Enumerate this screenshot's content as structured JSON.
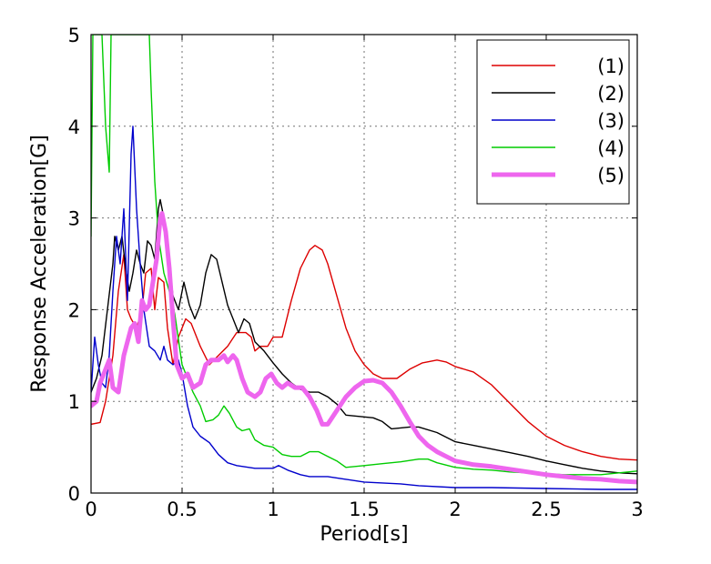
{
  "chart_data": {
    "type": "line",
    "title": "",
    "xlabel": "Period[s]",
    "ylabel": "Response Acceleration[G]",
    "xlim": [
      0,
      3
    ],
    "ylim": [
      0,
      5
    ],
    "xticks": [
      0,
      0.5,
      1,
      1.5,
      2,
      2.5,
      3
    ],
    "xtick_labels": [
      "0",
      "0.5",
      "1",
      "1.5",
      "2",
      "2.5",
      "3"
    ],
    "yticks": [
      0,
      1,
      2,
      3,
      4,
      5
    ],
    "ytick_labels": [
      "0",
      "1",
      "2",
      "3",
      "4",
      "5"
    ],
    "grid": true,
    "legend_position": "top-right",
    "series": [
      {
        "name": "(1)",
        "color": "#dd0000",
        "emphasis": "normal",
        "points": [
          [
            0,
            0.75
          ],
          [
            0.05,
            0.77
          ],
          [
            0.08,
            1.0
          ],
          [
            0.12,
            1.5
          ],
          [
            0.15,
            2.2
          ],
          [
            0.18,
            2.6
          ],
          [
            0.2,
            2.0
          ],
          [
            0.22,
            1.9
          ],
          [
            0.25,
            1.8
          ],
          [
            0.28,
            2.0
          ],
          [
            0.3,
            2.4
          ],
          [
            0.33,
            2.45
          ],
          [
            0.35,
            2.0
          ],
          [
            0.37,
            2.35
          ],
          [
            0.4,
            2.3
          ],
          [
            0.42,
            1.8
          ],
          [
            0.45,
            1.4
          ],
          [
            0.48,
            1.7
          ],
          [
            0.52,
            1.9
          ],
          [
            0.55,
            1.85
          ],
          [
            0.6,
            1.6
          ],
          [
            0.65,
            1.4
          ],
          [
            0.7,
            1.5
          ],
          [
            0.75,
            1.6
          ],
          [
            0.8,
            1.75
          ],
          [
            0.85,
            1.75
          ],
          [
            0.88,
            1.7
          ],
          [
            0.9,
            1.55
          ],
          [
            0.93,
            1.6
          ],
          [
            0.97,
            1.6
          ],
          [
            1.0,
            1.7
          ],
          [
            1.05,
            1.7
          ],
          [
            1.1,
            2.1
          ],
          [
            1.15,
            2.45
          ],
          [
            1.2,
            2.65
          ],
          [
            1.23,
            2.7
          ],
          [
            1.27,
            2.65
          ],
          [
            1.3,
            2.5
          ],
          [
            1.35,
            2.15
          ],
          [
            1.4,
            1.8
          ],
          [
            1.45,
            1.55
          ],
          [
            1.5,
            1.4
          ],
          [
            1.55,
            1.3
          ],
          [
            1.6,
            1.25
          ],
          [
            1.68,
            1.25
          ],
          [
            1.75,
            1.35
          ],
          [
            1.82,
            1.42
          ],
          [
            1.9,
            1.45
          ],
          [
            1.95,
            1.43
          ],
          [
            2.0,
            1.38
          ],
          [
            2.1,
            1.32
          ],
          [
            2.2,
            1.18
          ],
          [
            2.3,
            0.98
          ],
          [
            2.4,
            0.78
          ],
          [
            2.5,
            0.62
          ],
          [
            2.6,
            0.52
          ],
          [
            2.7,
            0.45
          ],
          [
            2.8,
            0.4
          ],
          [
            2.9,
            0.37
          ],
          [
            3.0,
            0.36
          ]
        ]
      },
      {
        "name": "(2)",
        "color": "#000000",
        "emphasis": "normal",
        "points": [
          [
            0,
            1.1
          ],
          [
            0.03,
            1.25
          ],
          [
            0.06,
            1.5
          ],
          [
            0.09,
            2.0
          ],
          [
            0.12,
            2.5
          ],
          [
            0.13,
            2.8
          ],
          [
            0.15,
            2.65
          ],
          [
            0.17,
            2.8
          ],
          [
            0.19,
            2.45
          ],
          [
            0.21,
            2.2
          ],
          [
            0.23,
            2.4
          ],
          [
            0.25,
            2.65
          ],
          [
            0.27,
            2.5
          ],
          [
            0.29,
            2.4
          ],
          [
            0.31,
            2.75
          ],
          [
            0.33,
            2.7
          ],
          [
            0.35,
            2.55
          ],
          [
            0.37,
            3.1
          ],
          [
            0.38,
            3.2
          ],
          [
            0.4,
            3.0
          ],
          [
            0.42,
            2.7
          ],
          [
            0.45,
            2.15
          ],
          [
            0.48,
            2.0
          ],
          [
            0.51,
            2.3
          ],
          [
            0.54,
            2.05
          ],
          [
            0.57,
            1.9
          ],
          [
            0.6,
            2.05
          ],
          [
            0.63,
            2.4
          ],
          [
            0.66,
            2.6
          ],
          [
            0.69,
            2.55
          ],
          [
            0.72,
            2.3
          ],
          [
            0.75,
            2.05
          ],
          [
            0.78,
            1.9
          ],
          [
            0.81,
            1.75
          ],
          [
            0.84,
            1.9
          ],
          [
            0.87,
            1.85
          ],
          [
            0.9,
            1.65
          ],
          [
            0.95,
            1.55
          ],
          [
            1.0,
            1.42
          ],
          [
            1.05,
            1.3
          ],
          [
            1.1,
            1.2
          ],
          [
            1.15,
            1.13
          ],
          [
            1.2,
            1.1
          ],
          [
            1.25,
            1.1
          ],
          [
            1.3,
            1.05
          ],
          [
            1.35,
            0.97
          ],
          [
            1.4,
            0.85
          ],
          [
            1.5,
            0.83
          ],
          [
            1.55,
            0.82
          ],
          [
            1.6,
            0.78
          ],
          [
            1.65,
            0.7
          ],
          [
            1.7,
            0.71
          ],
          [
            1.75,
            0.72
          ],
          [
            1.8,
            0.72
          ],
          [
            1.9,
            0.66
          ],
          [
            2.0,
            0.56
          ],
          [
            2.1,
            0.52
          ],
          [
            2.2,
            0.48
          ],
          [
            2.3,
            0.44
          ],
          [
            2.4,
            0.4
          ],
          [
            2.5,
            0.35
          ],
          [
            2.6,
            0.31
          ],
          [
            2.7,
            0.27
          ],
          [
            2.8,
            0.24
          ],
          [
            2.9,
            0.22
          ],
          [
            3.0,
            0.21
          ]
        ]
      },
      {
        "name": "(3)",
        "color": "#0000cc",
        "emphasis": "normal",
        "points": [
          [
            0,
            1.1
          ],
          [
            0.02,
            1.7
          ],
          [
            0.04,
            1.4
          ],
          [
            0.06,
            1.2
          ],
          [
            0.08,
            1.15
          ],
          [
            0.1,
            1.5
          ],
          [
            0.12,
            2.2
          ],
          [
            0.14,
            2.8
          ],
          [
            0.16,
            2.5
          ],
          [
            0.18,
            3.1
          ],
          [
            0.2,
            2.1
          ],
          [
            0.22,
            3.7
          ],
          [
            0.23,
            4.0
          ],
          [
            0.25,
            3.1
          ],
          [
            0.27,
            2.5
          ],
          [
            0.29,
            2.0
          ],
          [
            0.32,
            1.6
          ],
          [
            0.35,
            1.55
          ],
          [
            0.38,
            1.45
          ],
          [
            0.4,
            1.6
          ],
          [
            0.42,
            1.45
          ],
          [
            0.45,
            1.4
          ],
          [
            0.48,
            1.45
          ],
          [
            0.5,
            1.3
          ],
          [
            0.53,
            0.95
          ],
          [
            0.56,
            0.72
          ],
          [
            0.6,
            0.62
          ],
          [
            0.65,
            0.55
          ],
          [
            0.7,
            0.42
          ],
          [
            0.75,
            0.33
          ],
          [
            0.8,
            0.3
          ],
          [
            0.9,
            0.27
          ],
          [
            1.0,
            0.27
          ],
          [
            1.03,
            0.3
          ],
          [
            1.08,
            0.25
          ],
          [
            1.15,
            0.2
          ],
          [
            1.2,
            0.18
          ],
          [
            1.3,
            0.18
          ],
          [
            1.4,
            0.15
          ],
          [
            1.5,
            0.12
          ],
          [
            1.6,
            0.11
          ],
          [
            1.7,
            0.1
          ],
          [
            1.8,
            0.08
          ],
          [
            2.0,
            0.06
          ],
          [
            2.2,
            0.06
          ],
          [
            2.5,
            0.05
          ],
          [
            2.8,
            0.04
          ],
          [
            3.0,
            0.04
          ]
        ]
      },
      {
        "name": "(4)",
        "color": "#00cc00",
        "emphasis": "normal",
        "points": [
          [
            0,
            2.8
          ],
          [
            0.01,
            5.0
          ],
          [
            0.02,
            5.0
          ],
          [
            0.03,
            5.0
          ],
          [
            0.045,
            5.0
          ],
          [
            0.06,
            5.0
          ],
          [
            0.08,
            4.0
          ],
          [
            0.1,
            3.5
          ],
          [
            0.11,
            5.0
          ],
          [
            0.12,
            5.0
          ],
          [
            0.13,
            5.0
          ],
          [
            0.2,
            5.0
          ],
          [
            0.32,
            5.0
          ],
          [
            0.33,
            4.4
          ],
          [
            0.35,
            3.4
          ],
          [
            0.37,
            2.8
          ],
          [
            0.4,
            2.4
          ],
          [
            0.43,
            2.2
          ],
          [
            0.46,
            1.95
          ],
          [
            0.5,
            1.4
          ],
          [
            0.53,
            1.25
          ],
          [
            0.56,
            1.1
          ],
          [
            0.6,
            0.95
          ],
          [
            0.63,
            0.78
          ],
          [
            0.67,
            0.8
          ],
          [
            0.7,
            0.85
          ],
          [
            0.73,
            0.95
          ],
          [
            0.76,
            0.87
          ],
          [
            0.8,
            0.72
          ],
          [
            0.83,
            0.68
          ],
          [
            0.87,
            0.7
          ],
          [
            0.9,
            0.58
          ],
          [
            0.95,
            0.52
          ],
          [
            1.0,
            0.5
          ],
          [
            1.05,
            0.42
          ],
          [
            1.1,
            0.4
          ],
          [
            1.15,
            0.4
          ],
          [
            1.2,
            0.45
          ],
          [
            1.25,
            0.45
          ],
          [
            1.3,
            0.4
          ],
          [
            1.35,
            0.35
          ],
          [
            1.4,
            0.28
          ],
          [
            1.5,
            0.3
          ],
          [
            1.6,
            0.32
          ],
          [
            1.7,
            0.34
          ],
          [
            1.8,
            0.37
          ],
          [
            1.85,
            0.37
          ],
          [
            1.9,
            0.33
          ],
          [
            2.0,
            0.28
          ],
          [
            2.1,
            0.26
          ],
          [
            2.2,
            0.25
          ],
          [
            2.3,
            0.23
          ],
          [
            2.4,
            0.22
          ],
          [
            2.5,
            0.21
          ],
          [
            2.6,
            0.2
          ],
          [
            2.7,
            0.2
          ],
          [
            2.8,
            0.2
          ],
          [
            2.9,
            0.22
          ],
          [
            3.0,
            0.24
          ]
        ]
      },
      {
        "name": "(5)",
        "color": "#ee66ee",
        "emphasis": "bold",
        "points": [
          [
            0,
            0.95
          ],
          [
            0.03,
            1.0
          ],
          [
            0.05,
            1.2
          ],
          [
            0.08,
            1.35
          ],
          [
            0.1,
            1.45
          ],
          [
            0.12,
            1.15
          ],
          [
            0.15,
            1.1
          ],
          [
            0.18,
            1.5
          ],
          [
            0.2,
            1.65
          ],
          [
            0.22,
            1.8
          ],
          [
            0.24,
            1.85
          ],
          [
            0.26,
            1.65
          ],
          [
            0.28,
            2.1
          ],
          [
            0.3,
            2.0
          ],
          [
            0.32,
            2.05
          ],
          [
            0.34,
            2.3
          ],
          [
            0.36,
            2.55
          ],
          [
            0.38,
            3.0
          ],
          [
            0.39,
            3.05
          ],
          [
            0.41,
            2.85
          ],
          [
            0.43,
            2.45
          ],
          [
            0.45,
            1.9
          ],
          [
            0.47,
            1.4
          ],
          [
            0.5,
            1.25
          ],
          [
            0.53,
            1.3
          ],
          [
            0.56,
            1.15
          ],
          [
            0.6,
            1.2
          ],
          [
            0.63,
            1.4
          ],
          [
            0.66,
            1.45
          ],
          [
            0.7,
            1.45
          ],
          [
            0.73,
            1.5
          ],
          [
            0.75,
            1.43
          ],
          [
            0.78,
            1.5
          ],
          [
            0.8,
            1.45
          ],
          [
            0.83,
            1.25
          ],
          [
            0.86,
            1.1
          ],
          [
            0.9,
            1.05
          ],
          [
            0.93,
            1.1
          ],
          [
            0.96,
            1.25
          ],
          [
            0.99,
            1.3
          ],
          [
            1.02,
            1.2
          ],
          [
            1.05,
            1.15
          ],
          [
            1.08,
            1.2
          ],
          [
            1.12,
            1.15
          ],
          [
            1.16,
            1.15
          ],
          [
            1.2,
            1.05
          ],
          [
            1.24,
            0.9
          ],
          [
            1.27,
            0.75
          ],
          [
            1.3,
            0.75
          ],
          [
            1.35,
            0.9
          ],
          [
            1.4,
            1.05
          ],
          [
            1.45,
            1.15
          ],
          [
            1.5,
            1.22
          ],
          [
            1.55,
            1.23
          ],
          [
            1.6,
            1.2
          ],
          [
            1.65,
            1.1
          ],
          [
            1.7,
            0.95
          ],
          [
            1.75,
            0.78
          ],
          [
            1.8,
            0.62
          ],
          [
            1.85,
            0.52
          ],
          [
            1.9,
            0.45
          ],
          [
            1.95,
            0.4
          ],
          [
            2.0,
            0.35
          ],
          [
            2.1,
            0.31
          ],
          [
            2.2,
            0.29
          ],
          [
            2.3,
            0.26
          ],
          [
            2.4,
            0.23
          ],
          [
            2.5,
            0.2
          ],
          [
            2.6,
            0.18
          ],
          [
            2.7,
            0.16
          ],
          [
            2.8,
            0.15
          ],
          [
            2.9,
            0.13
          ],
          [
            3.0,
            0.12
          ]
        ]
      }
    ]
  }
}
